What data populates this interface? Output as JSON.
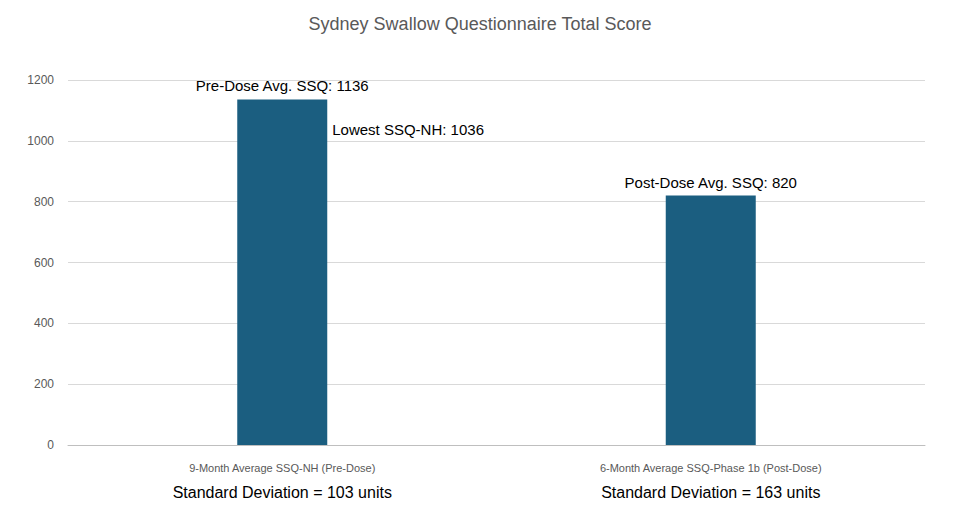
{
  "chart_data": {
    "type": "bar",
    "title": "Sydney Swallow Questionnaire Total Score",
    "categories": [
      "9-Month Average SSQ-NH (Pre-Dose)",
      "6-Month Average SSQ-Phase 1b (Post-Dose)"
    ],
    "values": [
      1136,
      820
    ],
    "value_labels": [
      "Pre-Dose Avg. SSQ: 1136",
      "Post-Dose Avg. SSQ: 820"
    ],
    "data_labels": true,
    "color": "#1b5e80",
    "ylim": [
      0,
      1200
    ],
    "yticks": [
      0,
      200,
      400,
      600,
      800,
      1000,
      1200
    ],
    "grid": true,
    "annotations": [
      {
        "text": "Lowest SSQ-NH: 1036",
        "category": "9-Month Average SSQ-NH (Pre-Dose)",
        "value": 1036
      }
    ],
    "category_notes": [
      "Standard Deviation = 103 units",
      "Standard Deviation = 163 units"
    ]
  }
}
